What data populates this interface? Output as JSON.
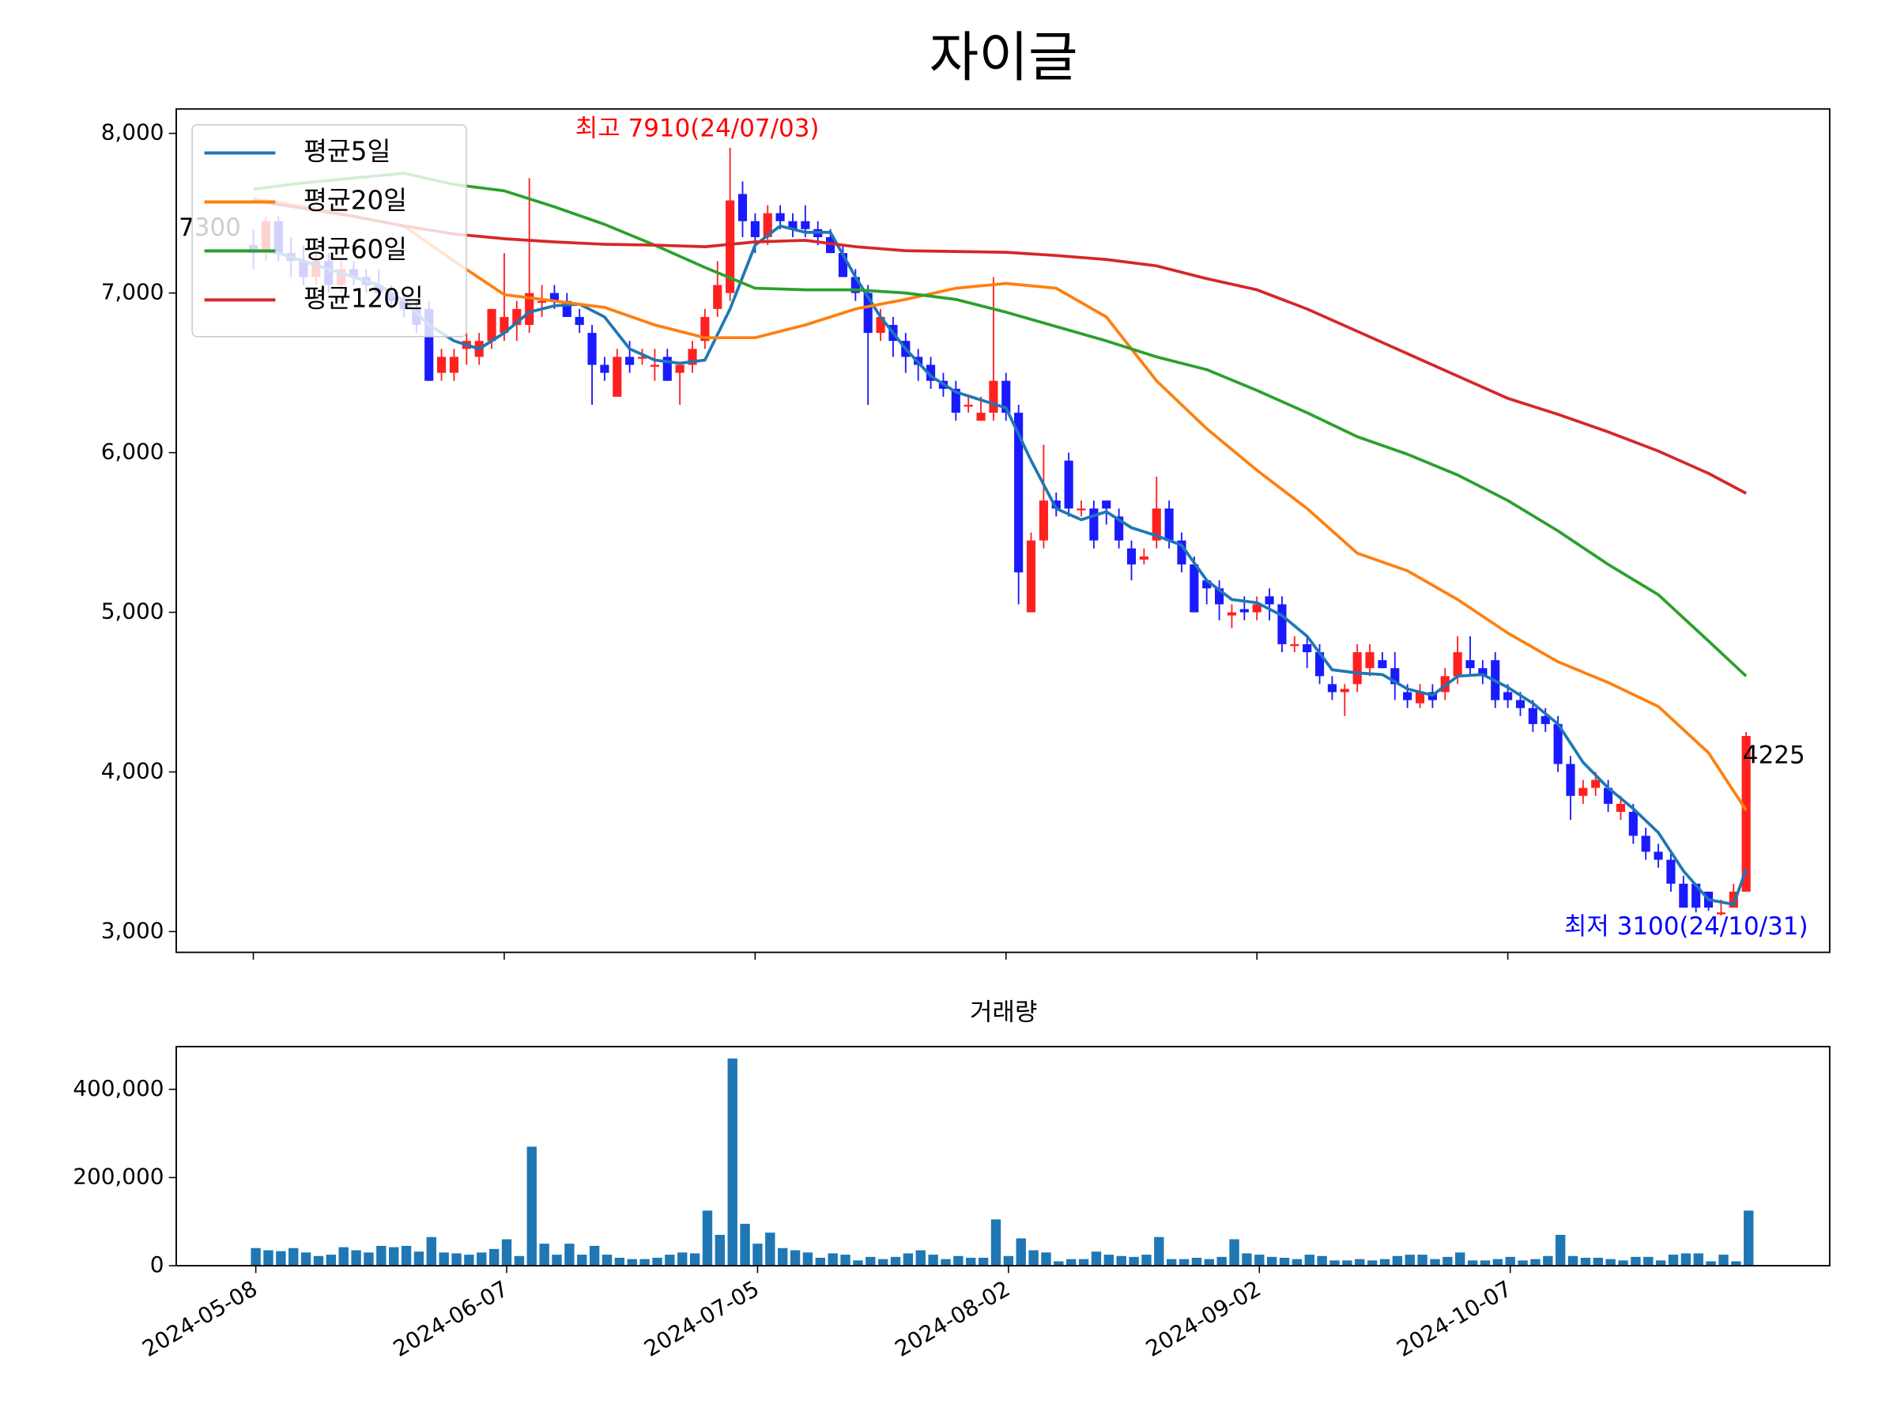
{
  "chart_data": [
    {
      "type": "candlestick",
      "title": "자이글",
      "open": [
        7300,
        7250,
        7450,
        7250,
        7200,
        7100,
        7200,
        7050,
        7150,
        7100,
        7050,
        7000,
        6950,
        6900,
        6900,
        6500,
        6500,
        6650,
        6600,
        6700,
        6750,
        6800,
        6800,
        6950,
        7000,
        6950,
        6850,
        6750,
        6550,
        6350,
        6600,
        6600,
        6550,
        6600,
        6500,
        6550,
        6700,
        6900,
        7000,
        7620,
        7450,
        7350,
        7500,
        7450,
        7450,
        7400,
        7350,
        7250,
        7100,
        7000,
        6750,
        6800,
        6700,
        6600,
        6550,
        6450,
        6400,
        6300,
        6200,
        6250,
        6450,
        6250,
        5000,
        5450,
        5700,
        5950,
        5650,
        5650,
        5700,
        5600,
        5400,
        5330,
        5450,
        5650,
        5450,
        5300,
        5200,
        5150,
        4980,
        5020,
        5000,
        5100,
        5050,
        4800,
        4800,
        4750,
        4550,
        4500,
        4550,
        4650,
        4700,
        4650,
        4500,
        4430,
        4500,
        4500,
        4600,
        4700,
        4650,
        4700,
        4500,
        4450,
        4400,
        4350,
        4300,
        4050,
        3850,
        3900,
        3900,
        3750,
        3750,
        3600,
        3500,
        3450,
        3300,
        3300,
        3250,
        3110,
        3150,
        3250
      ],
      "high": [
        7400,
        7480,
        7480,
        7350,
        7300,
        7250,
        7250,
        7200,
        7200,
        7150,
        7150,
        7050,
        7000,
        6950,
        6950,
        6650,
        6650,
        6750,
        6750,
        6900,
        7250,
        6950,
        7720,
        7050,
        7050,
        7000,
        6900,
        6800,
        6600,
        6650,
        6700,
        6650,
        6650,
        6650,
        6550,
        6700,
        6900,
        7200,
        7910,
        7700,
        7500,
        7550,
        7550,
        7500,
        7550,
        7450,
        7400,
        7300,
        7150,
        7050,
        6900,
        6850,
        6750,
        6650,
        6600,
        6500,
        6450,
        6350,
        6350,
        7100,
        6500,
        6300,
        5500,
        6050,
        5750,
        6000,
        5700,
        5700,
        5700,
        5650,
        5450,
        5400,
        5850,
        5700,
        5500,
        5350,
        5200,
        5200,
        5050,
        5100,
        5100,
        5150,
        5100,
        4850,
        4850,
        4800,
        4600,
        4550,
        4800,
        4800,
        4750,
        4750,
        4550,
        4550,
        4550,
        4650,
        4850,
        4850,
        4700,
        4750,
        4550,
        4500,
        4450,
        4400,
        4350,
        4100,
        3950,
        4000,
        3950,
        3850,
        3800,
        3650,
        3550,
        3500,
        3350,
        3300,
        3250,
        3200,
        3300,
        4250
      ],
      "low": [
        7150,
        7200,
        7200,
        7100,
        7050,
        7050,
        7000,
        7000,
        7050,
        7000,
        6950,
        6900,
        6850,
        6750,
        6450,
        6450,
        6450,
        6550,
        6550,
        6650,
        6700,
        6700,
        6750,
        6850,
        6900,
        6850,
        6750,
        6300,
        6450,
        6350,
        6500,
        6550,
        6450,
        6450,
        6300,
        6500,
        6650,
        6850,
        6950,
        7350,
        7250,
        7300,
        7400,
        7350,
        7350,
        7300,
        7250,
        7100,
        6950,
        6300,
        6700,
        6600,
        6500,
        6450,
        6400,
        6350,
        6200,
        6250,
        6200,
        6200,
        6200,
        5050,
        5000,
        5400,
        5600,
        5600,
        5600,
        5400,
        5550,
        5400,
        5200,
        5300,
        5400,
        5400,
        5250,
        5000,
        5050,
        4950,
        4900,
        4950,
        4950,
        4950,
        4750,
        4750,
        4650,
        4550,
        4450,
        4350,
        4500,
        4600,
        4650,
        4450,
        4400,
        4400,
        4400,
        4450,
        4550,
        4600,
        4550,
        4400,
        4400,
        4350,
        4250,
        4250,
        4000,
        3700,
        3800,
        3850,
        3750,
        3700,
        3550,
        3450,
        3400,
        3250,
        3150,
        3120,
        3130,
        3100,
        3150,
        3250
      ],
      "close": [
        7250,
        7450,
        7250,
        7200,
        7100,
        7200,
        7050,
        7150,
        7100,
        7050,
        7000,
        6950,
        6900,
        6800,
        6450,
        6600,
        6600,
        6700,
        6700,
        6900,
        6850,
        6900,
        7000,
        6950,
        6950,
        6850,
        6800,
        6550,
        6500,
        6600,
        6550,
        6600,
        6550,
        6450,
        6550,
        6650,
        6850,
        7050,
        7580,
        7450,
        7350,
        7500,
        7450,
        7400,
        7400,
        7350,
        7250,
        7100,
        7000,
        6750,
        6850,
        6700,
        6600,
        6550,
        6450,
        6400,
        6250,
        6300,
        6250,
        6450,
        6250,
        5250,
        5450,
        5700,
        5650,
        5650,
        5650,
        5450,
        5650,
        5450,
        5300,
        5350,
        5650,
        5450,
        5300,
        5000,
        5150,
        5050,
        5000,
        5000,
        5050,
        5050,
        4800,
        4800,
        4750,
        4600,
        4500,
        4520,
        4750,
        4750,
        4650,
        4550,
        4450,
        4500,
        4450,
        4600,
        4750,
        4650,
        4600,
        4450,
        4450,
        4400,
        4300,
        4300,
        4050,
        3850,
        3900,
        3950,
        3800,
        3800,
        3600,
        3500,
        3450,
        3300,
        3150,
        3150,
        3150,
        3120,
        3250,
        4225
      ],
      "up_color": "#ff2020",
      "down_color": "#1a1aff",
      "series": [
        {
          "name": "평균5일",
          "color": "#1f77b4",
          "x": [
            0,
            2,
            4,
            6,
            8,
            10,
            12,
            14,
            16,
            18,
            20,
            22,
            24,
            26,
            28,
            30,
            32,
            34,
            36,
            38,
            40,
            42,
            44,
            46,
            48,
            50,
            52,
            54,
            56,
            58,
            60,
            62,
            64,
            66,
            68,
            70,
            72,
            74,
            76,
            78,
            80,
            82,
            84,
            86,
            88,
            90,
            92,
            94,
            96,
            98,
            100,
            102,
            104,
            106,
            108,
            110,
            112,
            114,
            116,
            118,
            119
          ],
          "values": [
            7270,
            7250,
            7200,
            7150,
            7100,
            7050,
            6950,
            6800,
            6700,
            6650,
            6750,
            6880,
            6920,
            6930,
            6850,
            6650,
            6580,
            6560,
            6580,
            6900,
            7300,
            7420,
            7380,
            7380,
            7100,
            6850,
            6650,
            6480,
            6380,
            6330,
            6280,
            5950,
            5650,
            5580,
            5630,
            5530,
            5480,
            5420,
            5200,
            5080,
            5060,
            4980,
            4850,
            4640,
            4620,
            4610,
            4520,
            4480,
            4600,
            4610,
            4530,
            4430,
            4300,
            4060,
            3900,
            3770,
            3620,
            3380,
            3200,
            3170,
            3390
          ]
        },
        {
          "name": "평균20일",
          "color": "#ff7f0e",
          "x": [
            0,
            4,
            8,
            12,
            16,
            20,
            24,
            28,
            32,
            36,
            40,
            44,
            48,
            52,
            56,
            60,
            64,
            68,
            72,
            76,
            80,
            84,
            88,
            92,
            96,
            100,
            104,
            108,
            112,
            116,
            119
          ],
          "values": [
            7590,
            7540,
            7480,
            7420,
            7200,
            6990,
            6950,
            6910,
            6800,
            6720,
            6720,
            6800,
            6900,
            6960,
            7030,
            7060,
            7030,
            6850,
            6450,
            6150,
            5890,
            5650,
            5370,
            5260,
            5080,
            4870,
            4690,
            4560,
            4410,
            4120,
            3760
          ]
        },
        {
          "name": "평균60일",
          "color": "#2ca02c",
          "x": [
            0,
            4,
            8,
            12,
            16,
            20,
            24,
            28,
            32,
            36,
            40,
            44,
            48,
            52,
            56,
            60,
            64,
            68,
            72,
            76,
            80,
            84,
            88,
            92,
            96,
            100,
            104,
            108,
            112,
            116,
            119
          ],
          "values": [
            7650,
            7690,
            7720,
            7750,
            7680,
            7640,
            7540,
            7430,
            7300,
            7160,
            7030,
            7020,
            7020,
            7000,
            6960,
            6880,
            6790,
            6700,
            6600,
            6520,
            6390,
            6250,
            6100,
            5990,
            5860,
            5700,
            5510,
            5300,
            5110,
            4820,
            4600
          ]
        },
        {
          "name": "평균120일",
          "color": "#d62728",
          "x": [
            0,
            4,
            8,
            12,
            16,
            20,
            24,
            28,
            32,
            36,
            40,
            44,
            48,
            52,
            56,
            60,
            64,
            68,
            72,
            76,
            80,
            84,
            88,
            92,
            96,
            100,
            104,
            108,
            112,
            116,
            119
          ],
          "values": [
            7580,
            7530,
            7480,
            7420,
            7370,
            7340,
            7320,
            7305,
            7300,
            7290,
            7320,
            7330,
            7290,
            7265,
            7260,
            7255,
            7235,
            7210,
            7170,
            7090,
            7020,
            6900,
            6760,
            6620,
            6480,
            6340,
            6240,
            6130,
            6010,
            5870,
            5745
          ]
        }
      ],
      "ylim": [
        2870,
        8153
      ],
      "yticks": [
        {
          "value": 3000,
          "label": "3,000"
        },
        {
          "value": 4000,
          "label": "4,000"
        },
        {
          "value": 5000,
          "label": "5,000"
        },
        {
          "value": 6000,
          "label": "6,000"
        },
        {
          "value": 7000,
          "label": "7,000"
        },
        {
          "value": 8000,
          "label": "8,000"
        }
      ],
      "high_label": "최고 7910(24/07/03)",
      "low_label": "최저 3100(24/10/31)",
      "first_open_label": 7300,
      "last_close_label": 4225,
      "legend": "upper left"
    },
    {
      "type": "bar",
      "title": "거래량",
      "color": "#1f77b4",
      "categories": [
        "2024-05-08",
        null,
        null,
        null,
        null,
        null,
        null,
        null,
        null,
        null,
        null,
        null,
        null,
        null,
        null,
        null,
        null,
        null,
        null,
        null,
        "2024-06-07",
        null,
        null,
        null,
        null,
        null,
        null,
        null,
        null,
        null,
        null,
        null,
        null,
        null,
        null,
        null,
        null,
        null,
        null,
        null,
        "2024-07-05",
        null,
        null,
        null,
        null,
        null,
        null,
        null,
        null,
        null,
        null,
        null,
        null,
        null,
        null,
        null,
        null,
        null,
        null,
        null,
        "2024-08-02",
        null,
        null,
        null,
        null,
        null,
        null,
        null,
        null,
        null,
        null,
        null,
        null,
        null,
        null,
        null,
        null,
        null,
        null,
        null,
        "2024-09-02",
        null,
        null,
        null,
        null,
        null,
        null,
        null,
        null,
        null,
        null,
        null,
        null,
        null,
        null,
        null,
        null,
        null,
        null,
        null,
        "2024-10-07",
        null,
        null,
        null,
        null,
        null,
        null,
        null,
        null,
        null,
        null,
        null,
        null,
        null,
        null,
        null,
        null,
        null,
        null,
        null
      ],
      "values": [
        40000,
        35000,
        33000,
        40000,
        30000,
        22000,
        25000,
        42000,
        35000,
        30000,
        45000,
        42000,
        45000,
        32000,
        65000,
        30000,
        28000,
        25000,
        30000,
        38000,
        60000,
        22000,
        270000,
        50000,
        25000,
        50000,
        25000,
        45000,
        25000,
        18000,
        15000,
        15000,
        18000,
        25000,
        30000,
        28000,
        125000,
        70000,
        470000,
        95000,
        50000,
        75000,
        40000,
        35000,
        30000,
        18000,
        28000,
        25000,
        12000,
        20000,
        15000,
        20000,
        28000,
        35000,
        25000,
        15000,
        22000,
        18000,
        18000,
        105000,
        22000,
        62000,
        35000,
        30000,
        10000,
        15000,
        15000,
        32000,
        25000,
        22000,
        20000,
        25000,
        65000,
        15000,
        15000,
        18000,
        15000,
        20000,
        60000,
        28000,
        25000,
        20000,
        18000,
        15000,
        25000,
        22000,
        12000,
        12000,
        15000,
        12000,
        15000,
        22000,
        25000,
        25000,
        15000,
        20000,
        30000,
        12000,
        12000,
        15000,
        20000,
        12000,
        15000,
        22000,
        70000,
        22000,
        18000,
        18000,
        15000,
        12000,
        20000,
        20000,
        12000,
        25000,
        28000,
        28000,
        10000,
        25000,
        10000,
        125000
      ],
      "ylim": [
        0,
        497000
      ],
      "yticks": [
        0,
        {
          "value": 200000,
          "label": "200,000"
        },
        {
          "value": 400000,
          "label": "400,000"
        }
      ]
    }
  ]
}
